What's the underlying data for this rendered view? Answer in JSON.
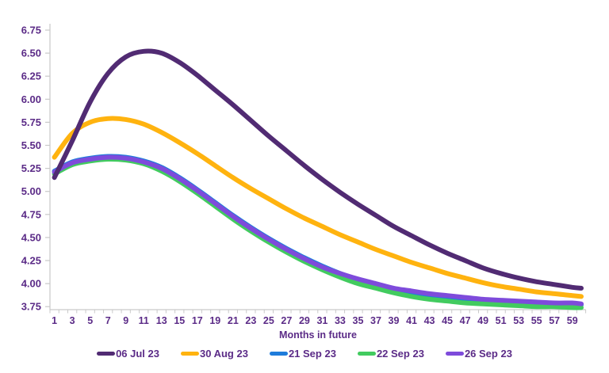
{
  "chart_data": {
    "type": "line",
    "title": "",
    "xlabel": "Months in future",
    "ylabel": "",
    "ylim": [
      3.75,
      6.75
    ],
    "ytick_step": 0.25,
    "x_range": [
      1,
      60
    ],
    "xticks_labeled": [
      1,
      3,
      5,
      7,
      9,
      11,
      13,
      15,
      17,
      19,
      21,
      23,
      25,
      27,
      29,
      31,
      33,
      35,
      37,
      39,
      41,
      43,
      45,
      47,
      49,
      51,
      53,
      55,
      57,
      59
    ],
    "grid": false,
    "legend_position": "bottom",
    "axis_text_color": "#5B2B87",
    "axis_line_color": "#C9C9C9",
    "months": [
      1,
      3,
      5,
      7,
      9,
      11,
      13,
      15,
      17,
      19,
      21,
      23,
      25,
      27,
      29,
      31,
      33,
      35,
      37,
      39,
      41,
      43,
      45,
      47,
      49,
      51,
      53,
      55,
      57,
      59,
      60
    ],
    "series": [
      {
        "name": "06 Jul 23",
        "color": "#512B73",
        "values": [
          5.15,
          5.55,
          5.97,
          6.28,
          6.46,
          6.52,
          6.5,
          6.4,
          6.26,
          6.1,
          5.94,
          5.77,
          5.6,
          5.44,
          5.28,
          5.13,
          4.99,
          4.86,
          4.74,
          4.62,
          4.52,
          4.42,
          4.33,
          4.25,
          4.17,
          4.11,
          4.06,
          4.02,
          3.99,
          3.96,
          3.95
        ]
      },
      {
        "name": "30 Aug 23",
        "color": "#FFB30F",
        "values": [
          5.37,
          5.63,
          5.75,
          5.79,
          5.78,
          5.73,
          5.64,
          5.53,
          5.41,
          5.28,
          5.15,
          5.03,
          4.92,
          4.81,
          4.71,
          4.62,
          4.53,
          4.45,
          4.37,
          4.3,
          4.23,
          4.17,
          4.11,
          4.06,
          4.01,
          3.97,
          3.94,
          3.91,
          3.89,
          3.87,
          3.86
        ]
      },
      {
        "name": "21 Sep 23",
        "color": "#1E7CDB",
        "values": [
          5.22,
          5.32,
          5.36,
          5.38,
          5.37,
          5.33,
          5.26,
          5.15,
          5.02,
          4.88,
          4.74,
          4.61,
          4.49,
          4.38,
          4.28,
          4.19,
          4.11,
          4.04,
          3.99,
          3.94,
          3.9,
          3.87,
          3.85,
          3.83,
          3.81,
          3.8,
          3.79,
          3.78,
          3.78,
          3.77,
          3.77
        ]
      },
      {
        "name": "22 Sep 23",
        "color": "#42CB5F",
        "values": [
          5.19,
          5.29,
          5.33,
          5.35,
          5.34,
          5.3,
          5.22,
          5.11,
          4.98,
          4.84,
          4.7,
          4.57,
          4.45,
          4.34,
          4.24,
          4.15,
          4.07,
          4.0,
          3.95,
          3.9,
          3.86,
          3.83,
          3.81,
          3.79,
          3.78,
          3.77,
          3.76,
          3.75,
          3.75,
          3.74,
          3.74
        ]
      },
      {
        "name": "26 Sep 23",
        "color": "#7E4BDB",
        "values": [
          5.21,
          5.31,
          5.35,
          5.37,
          5.36,
          5.32,
          5.25,
          5.14,
          5.01,
          4.87,
          4.73,
          4.6,
          4.48,
          4.37,
          4.27,
          4.18,
          4.11,
          4.05,
          4.0,
          3.95,
          3.92,
          3.89,
          3.87,
          3.85,
          3.83,
          3.82,
          3.81,
          3.8,
          3.79,
          3.79,
          3.78
        ]
      }
    ],
    "draw_order": [
      "30 Aug 23",
      "21 Sep 23",
      "22 Sep 23",
      "26 Sep 23",
      "06 Jul 23"
    ],
    "line_width": 6
  },
  "legend": {
    "items": [
      {
        "label": "06 Jul 23",
        "color": "#512B73"
      },
      {
        "label": "30 Aug 23",
        "color": "#FFB30F"
      },
      {
        "label": "21 Sep 23",
        "color": "#1E7CDB"
      },
      {
        "label": "22 Sep 23",
        "color": "#42CB5F"
      },
      {
        "label": "26 Sep 23",
        "color": "#7E4BDB"
      }
    ]
  }
}
